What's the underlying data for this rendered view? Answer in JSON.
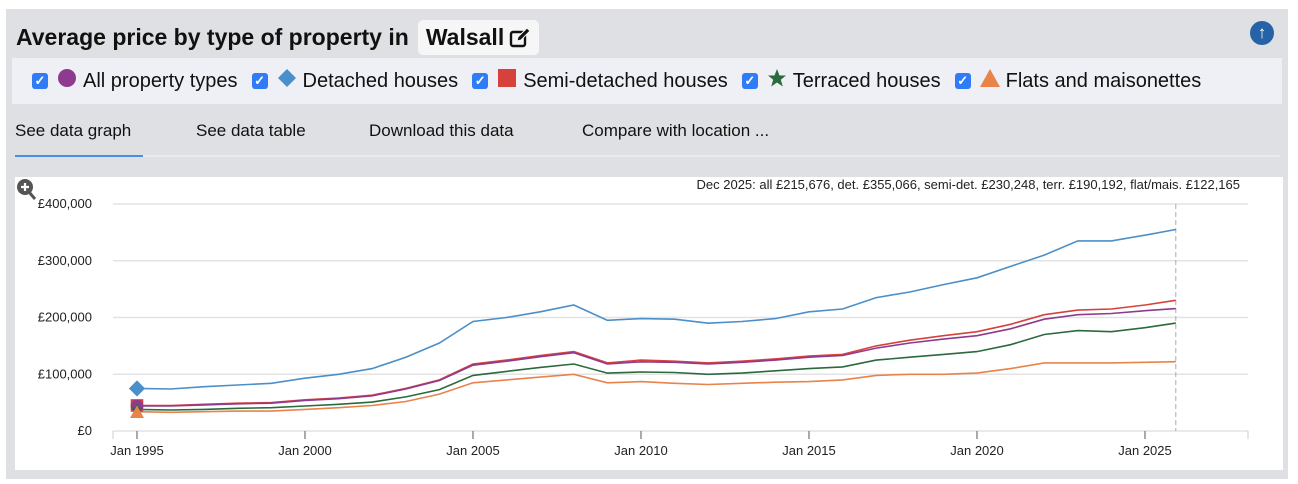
{
  "header": {
    "title": "Average price by type of property in",
    "location": "Walsall",
    "edit_icon": "pencil-square-icon",
    "scroll_top_icon": "arrow-up-circle-icon"
  },
  "legend": [
    {
      "label": "All property types",
      "marker": "circle",
      "color": "#8e3a8e",
      "checked": true
    },
    {
      "label": "Detached houses",
      "marker": "diamond",
      "color": "#4a8fc9",
      "checked": true
    },
    {
      "label": "Semi-detached houses",
      "marker": "square",
      "color": "#d6413b",
      "checked": true
    },
    {
      "label": "Terraced houses",
      "marker": "star",
      "color": "#2a6a3c",
      "checked": true
    },
    {
      "label": "Flats and maisonettes",
      "marker": "triangle",
      "color": "#e8834a",
      "checked": true
    }
  ],
  "tabs": [
    "See data graph",
    "See data table",
    "Download this data",
    "Compare with location ..."
  ],
  "active_tab": 0,
  "chart_data": {
    "type": "line",
    "annotation": "Dec 2025: all £215,676, det. £355,066, semi-det. £230,248, terr. £190,192, flat/mais. £122,165",
    "x_ticks": [
      "Jan 1995",
      "Jan 2000",
      "Jan 2005",
      "Jan 2010",
      "Jan 2015",
      "Jan 2020",
      "Jan 2025"
    ],
    "y_ticks": [
      "£0",
      "£100,000",
      "£200,000",
      "£300,000",
      "£400,000"
    ],
    "ylim": [
      0,
      400000
    ],
    "xlim": [
      "1993-07",
      "2027-06"
    ],
    "grid": true,
    "zoom_icon": "zoom-in-icon",
    "x": [
      "1995-01",
      "1996-01",
      "1997-01",
      "1998-01",
      "1999-01",
      "2000-01",
      "2001-01",
      "2002-01",
      "2003-01",
      "2004-01",
      "2005-01",
      "2006-01",
      "2007-01",
      "2008-01",
      "2009-01",
      "2010-01",
      "2011-01",
      "2012-01",
      "2013-01",
      "2014-01",
      "2015-01",
      "2016-01",
      "2017-01",
      "2018-01",
      "2019-01",
      "2020-01",
      "2021-01",
      "2022-01",
      "2023-01",
      "2024-01",
      "2025-01",
      "2025-12"
    ],
    "series": [
      {
        "name": "Detached houses",
        "color": "#4a8fc9",
        "values": [
          75000,
          74000,
          78000,
          81000,
          84000,
          93000,
          100000,
          110000,
          130000,
          155000,
          193000,
          200000,
          210000,
          222000,
          195000,
          198000,
          197000,
          190000,
          193000,
          198000,
          210000,
          215000,
          235000,
          245000,
          258000,
          270000,
          290000,
          310000,
          335000,
          335000,
          345000,
          355066
        ]
      },
      {
        "name": "Semi-detached houses",
        "color": "#d6413b",
        "values": [
          45000,
          45000,
          47000,
          49000,
          50000,
          55000,
          58000,
          63000,
          75000,
          90000,
          118000,
          125000,
          133000,
          140000,
          120000,
          125000,
          123000,
          120000,
          123000,
          127000,
          132000,
          135000,
          150000,
          160000,
          168000,
          175000,
          188000,
          205000,
          213000,
          215000,
          222000,
          230248
        ]
      },
      {
        "name": "All property types",
        "color": "#8e3a8e",
        "values": [
          44000,
          44000,
          46000,
          48000,
          49000,
          54000,
          57000,
          62000,
          74000,
          89000,
          116000,
          123000,
          131000,
          138000,
          118000,
          122000,
          121000,
          118000,
          121000,
          125000,
          130000,
          133000,
          146000,
          155000,
          162000,
          168000,
          180000,
          197000,
          205000,
          207000,
          212000,
          215676
        ]
      },
      {
        "name": "Terraced houses",
        "color": "#2a6a3c",
        "values": [
          38000,
          37000,
          38000,
          40000,
          41000,
          44000,
          47000,
          51000,
          60000,
          73000,
          98000,
          105000,
          112000,
          118000,
          102000,
          104000,
          103000,
          100000,
          102000,
          106000,
          110000,
          113000,
          125000,
          130000,
          135000,
          140000,
          152000,
          170000,
          177000,
          175000,
          182000,
          190192
        ]
      },
      {
        "name": "Flats and maisonettes",
        "color": "#e8834a",
        "values": [
          34000,
          33000,
          34000,
          35000,
          35000,
          38000,
          41000,
          45000,
          52000,
          65000,
          85000,
          90000,
          95000,
          100000,
          85000,
          87000,
          84000,
          82000,
          84000,
          86000,
          87000,
          90000,
          98000,
          100000,
          100000,
          102000,
          110000,
          120000,
          120000,
          120000,
          121000,
          122165
        ]
      }
    ]
  }
}
